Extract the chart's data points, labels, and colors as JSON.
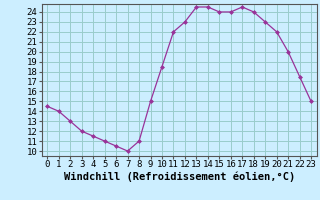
{
  "x": [
    0,
    1,
    2,
    3,
    4,
    5,
    6,
    7,
    8,
    9,
    10,
    11,
    12,
    13,
    14,
    15,
    16,
    17,
    18,
    19,
    20,
    21,
    22,
    23
  ],
  "y": [
    14.5,
    14.0,
    13.0,
    12.0,
    11.5,
    11.0,
    10.5,
    10.0,
    11.0,
    15.0,
    18.5,
    22.0,
    23.0,
    24.5,
    24.5,
    24.0,
    24.0,
    24.5,
    24.0,
    23.0,
    22.0,
    20.0,
    17.5,
    15.0
  ],
  "line_color": "#993399",
  "marker": "D",
  "marker_size": 2,
  "bg_color": "#cceeff",
  "grid_color": "#99cccc",
  "xlabel": "Windchill (Refroidissement éolien,°C)",
  "xlim": [
    -0.5,
    23.5
  ],
  "ylim": [
    9.5,
    24.8
  ],
  "yticks": [
    10,
    11,
    12,
    13,
    14,
    15,
    16,
    17,
    18,
    19,
    20,
    21,
    22,
    23,
    24
  ],
  "xticks": [
    0,
    1,
    2,
    3,
    4,
    5,
    6,
    7,
    8,
    9,
    10,
    11,
    12,
    13,
    14,
    15,
    16,
    17,
    18,
    19,
    20,
    21,
    22,
    23
  ],
  "tick_fontsize": 6.5,
  "xlabel_fontsize": 7.5,
  "spine_color": "#555555",
  "linewidth": 0.9
}
